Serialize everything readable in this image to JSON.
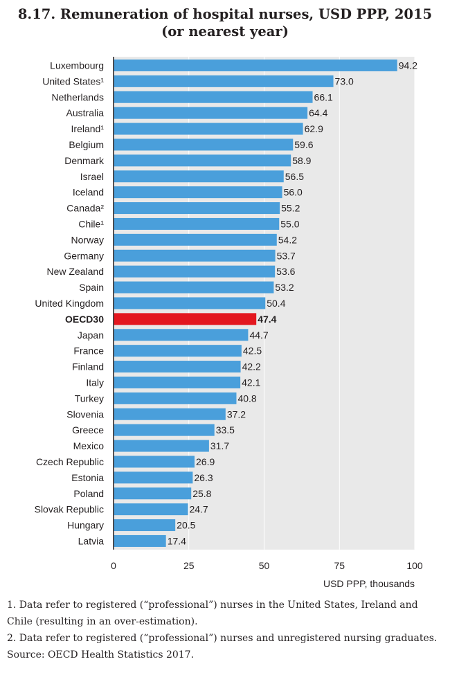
{
  "title_line1": "8.17. Remuneration of hospital nurses, USD PPP, 2015",
  "title_line2": "(or nearest year)",
  "colors": {
    "bar": "#4a9fdb",
    "highlight": "#e3171f",
    "plot_bg": "#e9e9e9",
    "grid": "#ffffff"
  },
  "chart_data": {
    "type": "bar",
    "orientation": "horizontal",
    "categories": [
      "Luxembourg",
      "United States¹",
      "Netherlands",
      "Australia",
      "Ireland¹",
      "Belgium",
      "Denmark",
      "Israel",
      "Iceland",
      "Canada²",
      "Chile¹",
      "Norway",
      "Germany",
      "New Zealand",
      "Spain",
      "United Kingdom",
      "OECD30",
      "Japan",
      "France",
      "Finland",
      "Italy",
      "Turkey",
      "Slovenia",
      "Greece",
      "Mexico",
      "Czech Republic",
      "Estonia",
      "Poland",
      "Slovak Republic",
      "Hungary",
      "Latvia"
    ],
    "values": [
      94.2,
      73.0,
      66.1,
      64.4,
      62.9,
      59.6,
      58.9,
      56.5,
      56.0,
      55.2,
      55.0,
      54.2,
      53.7,
      53.6,
      53.2,
      50.4,
      47.4,
      44.7,
      42.5,
      42.2,
      42.1,
      40.8,
      37.2,
      33.5,
      31.7,
      26.9,
      26.3,
      25.8,
      24.7,
      20.5,
      17.4
    ],
    "value_labels": [
      "94.2",
      "73.0",
      "66.1",
      "64.4",
      "62.9",
      "59.6",
      "58.9",
      "56.5",
      "56.0",
      "55.2",
      "55.0",
      "54.2",
      "53.7",
      "53.6",
      "53.2",
      "50.4",
      "47.4",
      "44.7",
      "42.5",
      "42.2",
      "42.1",
      "40.8",
      "37.2",
      "33.5",
      "31.7",
      "26.9",
      "26.3",
      "25.8",
      "24.7",
      "20.5",
      "17.4"
    ],
    "highlight": "OECD30",
    "xlim": [
      0,
      100
    ],
    "xticks": [
      0,
      25,
      50,
      75,
      100
    ],
    "xtick_labels": [
      "0",
      "25",
      "50",
      "75",
      "100"
    ],
    "xlabel": "USD PPP, thousands",
    "grid": true
  },
  "notes": [
    "1. Data refer to registered (“professional”) nurses in the United States, Ireland and Chile (resulting in an over-estimation).",
    "2. Data refer to registered (“professional”) nurses and unregistered nursing graduates.",
    "Source: OECD Health Statistics 2017."
  ]
}
